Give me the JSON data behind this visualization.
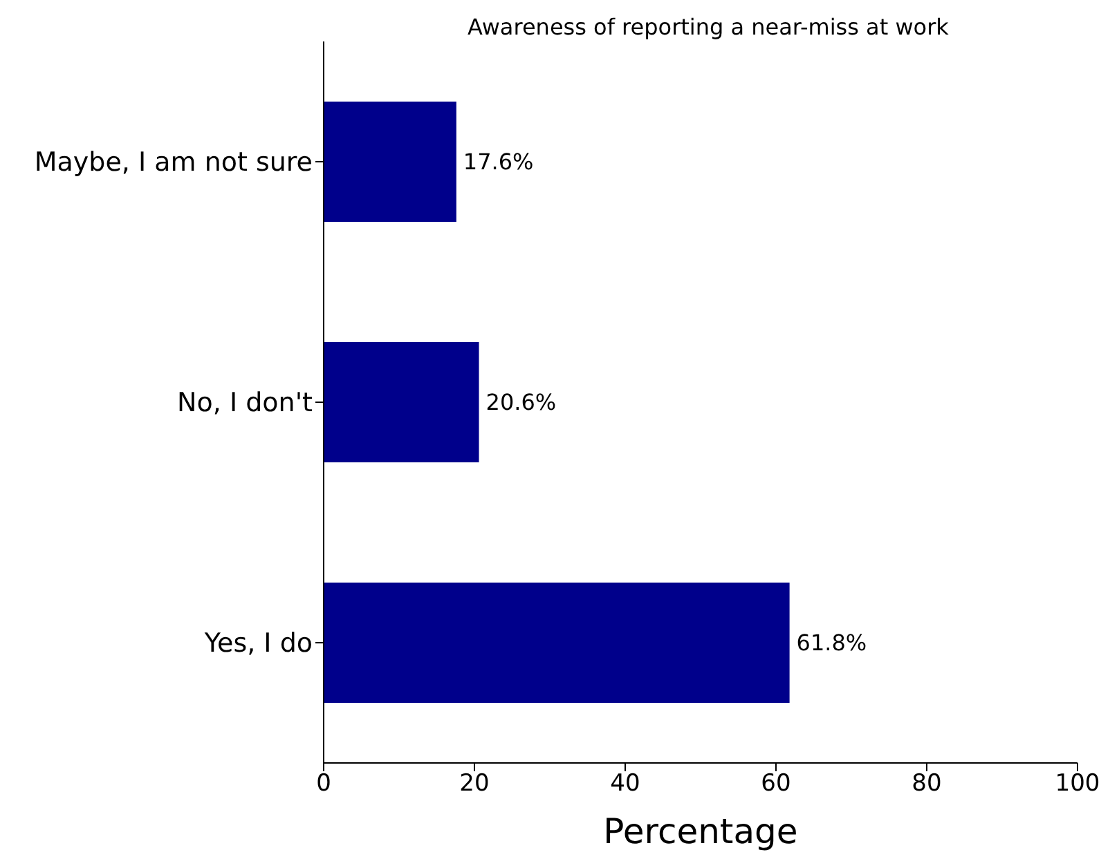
{
  "chart_data": {
    "type": "bar",
    "orientation": "horizontal",
    "title": "Awareness of reporting a near-miss at work",
    "xlabel": "Percentage",
    "categories": [
      "Maybe, I am not sure",
      "No, I don't",
      "Yes, I do"
    ],
    "values": [
      17.6,
      20.6,
      61.8
    ],
    "value_labels": [
      "17.6%",
      "20.6%",
      "61.8%"
    ],
    "color": "#00008b",
    "xlim": [
      0,
      100
    ],
    "xticks": [
      0,
      20,
      40,
      60,
      80,
      100
    ],
    "grid": false,
    "legend": false
  }
}
